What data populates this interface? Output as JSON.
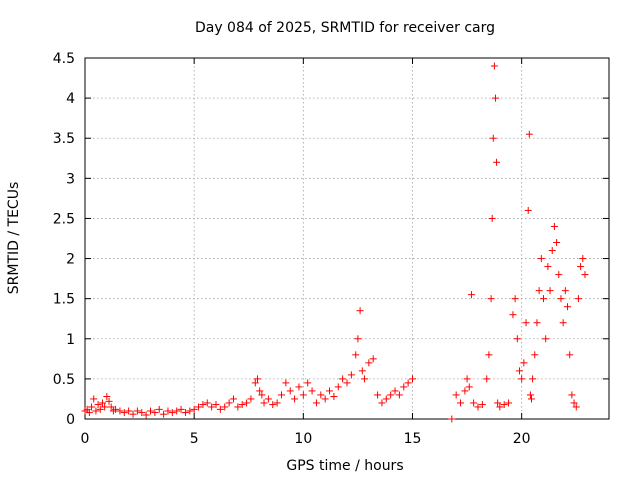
{
  "chart_data": {
    "type": "scatter",
    "title": "Day 084 of 2025, SRMTID for receiver carg",
    "xlabel": "GPS time / hours",
    "ylabel": "SRMTID / TECUs",
    "xlim": [
      0,
      24
    ],
    "ylim": [
      0,
      4.5
    ],
    "xticks": [
      0,
      5,
      10,
      15,
      20
    ],
    "yticks": [
      0,
      0.5,
      1,
      1.5,
      2,
      2.5,
      3,
      3.5,
      4,
      4.5
    ],
    "xtick_labels": [
      "0",
      "5",
      "10",
      "15",
      "20"
    ],
    "ytick_labels": [
      "0",
      "0.5",
      "1",
      "1.5",
      "2",
      "2.5",
      "3",
      "3.5",
      "4",
      "4.5"
    ],
    "grid": true,
    "marker": "+",
    "color": "#ff0000",
    "series": [
      {
        "name": "carg",
        "x": [
          0.0,
          0.1,
          0.2,
          0.3,
          0.4,
          0.5,
          0.6,
          0.7,
          0.8,
          0.9,
          1.0,
          1.1,
          1.2,
          1.3,
          1.4,
          1.6,
          1.8,
          2.0,
          2.2,
          2.4,
          2.6,
          2.8,
          3.0,
          3.2,
          3.4,
          3.6,
          3.8,
          4.0,
          4.2,
          4.4,
          4.6,
          4.8,
          5.0,
          5.2,
          5.4,
          5.6,
          5.8,
          6.0,
          6.2,
          6.4,
          6.6,
          6.8,
          7.0,
          7.2,
          7.4,
          7.6,
          7.8,
          7.9,
          8.0,
          8.1,
          8.2,
          8.4,
          8.6,
          8.8,
          9.0,
          9.2,
          9.4,
          9.6,
          9.8,
          10.0,
          10.2,
          10.4,
          10.6,
          10.8,
          11.0,
          11.2,
          11.4,
          11.6,
          11.8,
          12.0,
          12.2,
          12.4,
          12.5,
          12.6,
          12.7,
          12.8,
          13.0,
          13.2,
          13.4,
          13.6,
          13.8,
          14.0,
          14.2,
          14.4,
          14.6,
          14.8,
          15.0,
          16.8,
          17.0,
          17.2,
          17.4,
          17.5,
          17.6,
          17.7,
          17.8,
          18.0,
          18.2,
          18.4,
          18.5,
          18.6,
          18.65,
          18.7,
          18.75,
          18.8,
          18.85,
          18.9,
          19.0,
          19.2,
          19.4,
          19.6,
          19.7,
          19.8,
          19.9,
          20.0,
          20.1,
          20.2,
          20.3,
          20.35,
          20.4,
          20.45,
          20.5,
          20.6,
          20.7,
          20.8,
          20.9,
          21.0,
          21.1,
          21.2,
          21.3,
          21.4,
          21.5,
          21.6,
          21.7,
          21.8,
          21.9,
          22.0,
          22.1,
          22.2,
          22.3,
          22.4,
          22.5,
          22.6,
          22.7,
          22.8,
          22.9
        ],
        "y": [
          0.1,
          0.12,
          0.08,
          0.15,
          0.25,
          0.1,
          0.18,
          0.12,
          0.2,
          0.15,
          0.28,
          0.22,
          0.15,
          0.1,
          0.12,
          0.1,
          0.08,
          0.1,
          0.06,
          0.1,
          0.08,
          0.05,
          0.1,
          0.08,
          0.12,
          0.06,
          0.1,
          0.08,
          0.1,
          0.12,
          0.08,
          0.1,
          0.12,
          0.15,
          0.18,
          0.2,
          0.15,
          0.18,
          0.12,
          0.15,
          0.2,
          0.25,
          0.15,
          0.18,
          0.2,
          0.25,
          0.45,
          0.5,
          0.35,
          0.3,
          0.2,
          0.25,
          0.18,
          0.2,
          0.3,
          0.45,
          0.35,
          0.25,
          0.4,
          0.3,
          0.45,
          0.35,
          0.2,
          0.3,
          0.25,
          0.35,
          0.28,
          0.4,
          0.5,
          0.45,
          0.55,
          0.8,
          1.0,
          1.35,
          0.6,
          0.5,
          0.7,
          0.75,
          0.3,
          0.2,
          0.25,
          0.3,
          0.35,
          0.3,
          0.4,
          0.45,
          0.5,
          0.0,
          0.3,
          0.2,
          0.35,
          0.5,
          0.4,
          1.55,
          0.2,
          0.15,
          0.18,
          0.5,
          0.8,
          1.5,
          2.5,
          3.5,
          4.4,
          4.0,
          3.2,
          0.2,
          0.15,
          0.18,
          0.2,
          1.3,
          1.5,
          1.0,
          0.6,
          0.5,
          0.7,
          1.2,
          2.6,
          3.55,
          0.3,
          0.25,
          0.5,
          0.8,
          1.2,
          1.6,
          2.0,
          1.5,
          1.0,
          1.9,
          1.6,
          2.1,
          2.4,
          2.2,
          1.8,
          1.5,
          1.2,
          1.6,
          1.4,
          0.8,
          0.3,
          0.2,
          0.15,
          1.5,
          1.9,
          2.0,
          1.8
        ]
      }
    ]
  }
}
